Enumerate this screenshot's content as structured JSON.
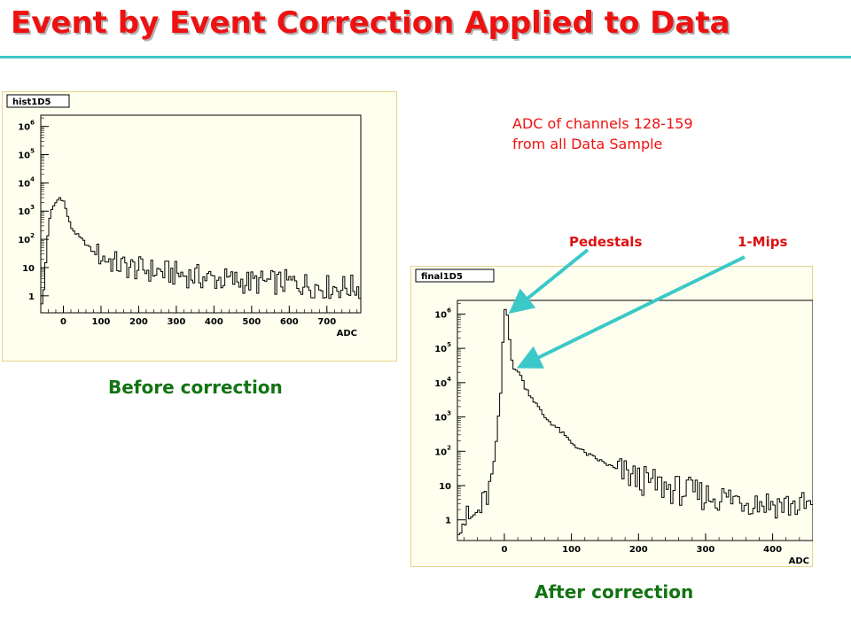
{
  "title": "Event by Event Correction Applied to Data",
  "note": {
    "line1": "ADC of channels 128-159",
    "line2": "from all Data Sample"
  },
  "annotations": {
    "pedestals": "Pedestals",
    "mips": "1-Mips"
  },
  "captions": {
    "before": "Before correction",
    "after": "After correction"
  },
  "colors": {
    "title": "#ee1111",
    "rule": "#3cc8c8",
    "caption": "#137313",
    "arrow": "#3cc8c8",
    "panel_bg": "#fffff0",
    "panel_border": "#e6d48a"
  },
  "chart_data": [
    {
      "type": "histogram",
      "name_box": "hist1D5",
      "xlabel": "ADC",
      "ylabel": "",
      "xlim": [
        -60,
        790
      ],
      "ylim": [
        0.25,
        2500000
      ],
      "yscale": "log",
      "x_ticks": [
        0,
        100,
        200,
        300,
        400,
        500,
        600,
        700
      ],
      "y_ticks": [
        {
          "value": 1,
          "base": "1",
          "exp": ""
        },
        {
          "value": 10,
          "base": "10",
          "exp": ""
        },
        {
          "value": 100,
          "base": "10",
          "exp": "2"
        },
        {
          "value": 1000,
          "base": "10",
          "exp": "3"
        },
        {
          "value": 10000,
          "base": "10",
          "exp": "4"
        },
        {
          "value": 100000,
          "base": "10",
          "exp": "5"
        },
        {
          "value": 1000000,
          "base": "10",
          "exp": "6"
        }
      ],
      "points": [
        [
          -50,
          1
        ],
        [
          -45,
          50
        ],
        [
          -35,
          800
        ],
        [
          -20,
          2000
        ],
        [
          -10,
          3000
        ],
        [
          0,
          2500
        ],
        [
          10,
          800
        ],
        [
          20,
          280
        ],
        [
          30,
          180
        ],
        [
          40,
          130
        ],
        [
          50,
          95
        ],
        [
          60,
          70
        ],
        [
          80,
          35
        ],
        [
          100,
          25
        ],
        [
          150,
          12
        ],
        [
          200,
          9
        ],
        [
          300,
          6
        ],
        [
          400,
          4
        ],
        [
          500,
          3
        ],
        [
          600,
          3
        ],
        [
          700,
          2
        ],
        [
          785,
          2
        ]
      ]
    },
    {
      "type": "histogram",
      "name_box": "final1D5",
      "xlabel": "ADC",
      "ylabel": "",
      "xlim": [
        -70,
        460
      ],
      "ylim": [
        0.25,
        2500000
      ],
      "yscale": "log",
      "x_ticks": [
        0,
        100,
        200,
        300,
        400
      ],
      "y_ticks": [
        {
          "value": 1,
          "base": "1",
          "exp": ""
        },
        {
          "value": 10,
          "base": "10",
          "exp": ""
        },
        {
          "value": 100,
          "base": "10",
          "exp": "2"
        },
        {
          "value": 1000,
          "base": "10",
          "exp": "3"
        },
        {
          "value": 10000,
          "base": "10",
          "exp": "4"
        },
        {
          "value": 100000,
          "base": "10",
          "exp": "5"
        },
        {
          "value": 1000000,
          "base": "10",
          "exp": "6"
        }
      ],
      "points": [
        [
          -65,
          1
        ],
        [
          -60,
          1
        ],
        [
          -50,
          1
        ],
        [
          -40,
          1.5
        ],
        [
          -30,
          3
        ],
        [
          -20,
          10
        ],
        [
          -15,
          50
        ],
        [
          -10,
          500
        ],
        [
          -5,
          6000
        ],
        [
          0,
          1500000
        ],
        [
          5,
          1000000
        ],
        [
          10,
          60000
        ],
        [
          15,
          20000
        ],
        [
          20,
          25000
        ],
        [
          25,
          15000
        ],
        [
          30,
          8000
        ],
        [
          40,
          4000
        ],
        [
          50,
          2000
        ],
        [
          60,
          1000
        ],
        [
          80,
          450
        ],
        [
          100,
          180
        ],
        [
          120,
          90
        ],
        [
          150,
          45
        ],
        [
          180,
          22
        ],
        [
          200,
          15
        ],
        [
          250,
          8
        ],
        [
          300,
          5
        ],
        [
          350,
          4
        ],
        [
          400,
          3
        ],
        [
          450,
          2.5
        ],
        [
          458,
          2.5
        ]
      ]
    }
  ]
}
